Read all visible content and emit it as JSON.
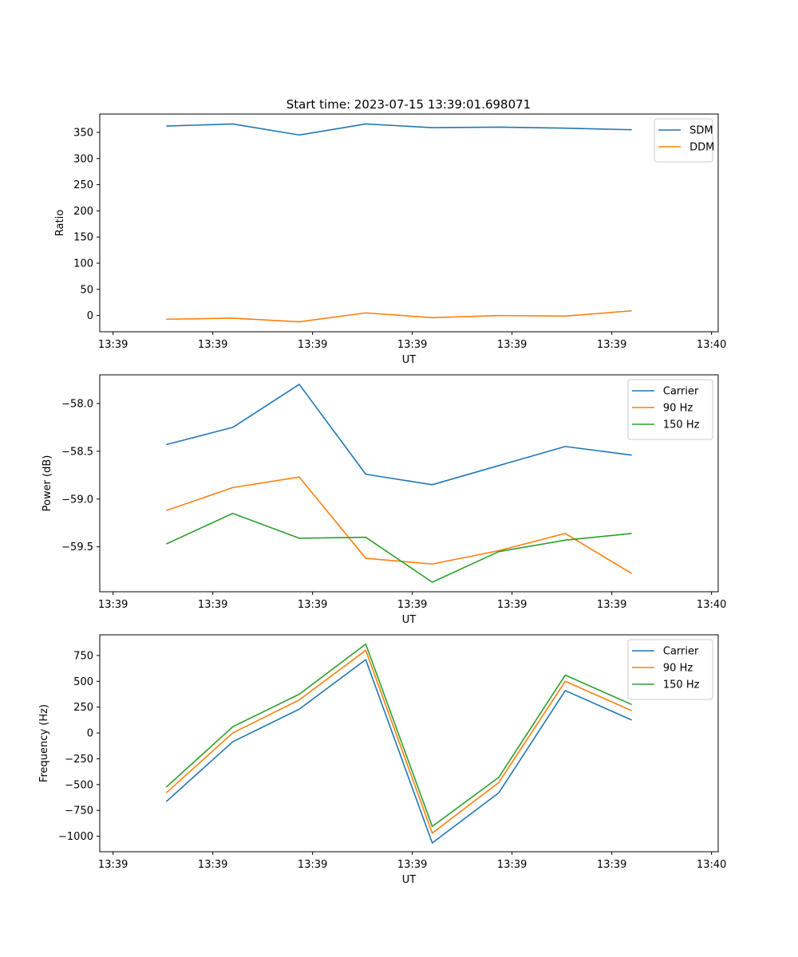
{
  "figure_title": "Start time: 2023-07-15 13:39:01.698071",
  "chart_data": [
    {
      "type": "line",
      "title": "Start time: 2023-07-15 13:39:01.698071",
      "xlabel": "UT",
      "ylabel": "Ratio",
      "x": [
        1,
        2,
        3,
        4,
        5,
        6,
        7,
        8
      ],
      "xlim": [
        0,
        9.3
      ],
      "x_ticks": [
        0.2,
        1.7,
        3.2,
        4.7,
        6.2,
        7.7,
        9.2
      ],
      "x_tick_labels": [
        "13:39",
        "13:39",
        "13:39",
        "13:39",
        "13:39",
        "13:39",
        "13:40"
      ],
      "ylim": [
        -31,
        385
      ],
      "y_ticks": [
        0,
        50,
        100,
        150,
        200,
        250,
        300,
        350
      ],
      "y_tick_labels": [
        "0",
        "50",
        "100",
        "150",
        "200",
        "250",
        "300",
        "350"
      ],
      "legend_position": "top-right",
      "series": [
        {
          "name": "SDM",
          "color": "#1f77b4",
          "values": [
            362,
            366,
            345,
            366,
            359,
            360,
            358,
            355
          ]
        },
        {
          "name": "DDM",
          "color": "#ff7f0e",
          "values": [
            -7,
            -5,
            -12,
            5,
            -4,
            0,
            -1,
            9
          ]
        }
      ]
    },
    {
      "type": "line",
      "title": "",
      "xlabel": "UT",
      "ylabel": "Power (dB)",
      "x": [
        1,
        2,
        3,
        4,
        5,
        6,
        7,
        8
      ],
      "xlim": [
        0,
        9.3
      ],
      "x_ticks": [
        0.2,
        1.7,
        3.2,
        4.7,
        6.2,
        7.7,
        9.2
      ],
      "x_tick_labels": [
        "13:39",
        "13:39",
        "13:39",
        "13:39",
        "13:39",
        "13:39",
        "13:40"
      ],
      "ylim": [
        -59.97,
        -57.7
      ],
      "y_ticks": [
        -59.5,
        -59.0,
        -58.5,
        -58.0
      ],
      "y_tick_labels": [
        "−59.5",
        "−59.0",
        "−58.5",
        "−58.0"
      ],
      "legend_position": "top-right",
      "series": [
        {
          "name": "Carrier",
          "color": "#1f77b4",
          "values": [
            -58.43,
            -58.25,
            -57.8,
            -58.74,
            -58.85,
            -58.65,
            -58.45,
            -58.54
          ]
        },
        {
          "name": "90 Hz",
          "color": "#ff7f0e",
          "values": [
            -59.12,
            -58.88,
            -58.77,
            -59.62,
            -59.68,
            -59.54,
            -59.36,
            -59.78
          ]
        },
        {
          "name": "150 Hz",
          "color": "#2ca02c",
          "values": [
            -59.47,
            -59.15,
            -59.41,
            -59.4,
            -59.87,
            -59.55,
            -59.43,
            -59.36
          ]
        }
      ]
    },
    {
      "type": "line",
      "title": "",
      "xlabel": "UT",
      "ylabel": "Frequency (Hz)",
      "x": [
        1,
        2,
        3,
        4,
        5,
        6,
        7,
        8
      ],
      "xlim": [
        0,
        9.3
      ],
      "x_ticks": [
        0.2,
        1.7,
        3.2,
        4.7,
        6.2,
        7.7,
        9.2
      ],
      "x_tick_labels": [
        "13:39",
        "13:39",
        "13:39",
        "13:39",
        "13:39",
        "13:39",
        "13:40"
      ],
      "ylim": [
        -1150,
        950
      ],
      "y_ticks": [
        -1000,
        -750,
        -500,
        -250,
        0,
        250,
        500,
        750
      ],
      "y_tick_labels": [
        "−1000",
        "−750",
        "−500",
        "−250",
        "0",
        "250",
        "500",
        "750"
      ],
      "legend_position": "top-right",
      "series": [
        {
          "name": "Carrier",
          "color": "#1f77b4",
          "values": [
            -665,
            -85,
            230,
            710,
            -1065,
            -580,
            410,
            125
          ]
        },
        {
          "name": "90 Hz",
          "color": "#ff7f0e",
          "values": [
            -580,
            0,
            320,
            800,
            -970,
            -480,
            500,
            215
          ]
        },
        {
          "name": "150 Hz",
          "color": "#2ca02c",
          "values": [
            -525,
            60,
            375,
            860,
            -905,
            -430,
            560,
            275
          ]
        }
      ]
    }
  ]
}
